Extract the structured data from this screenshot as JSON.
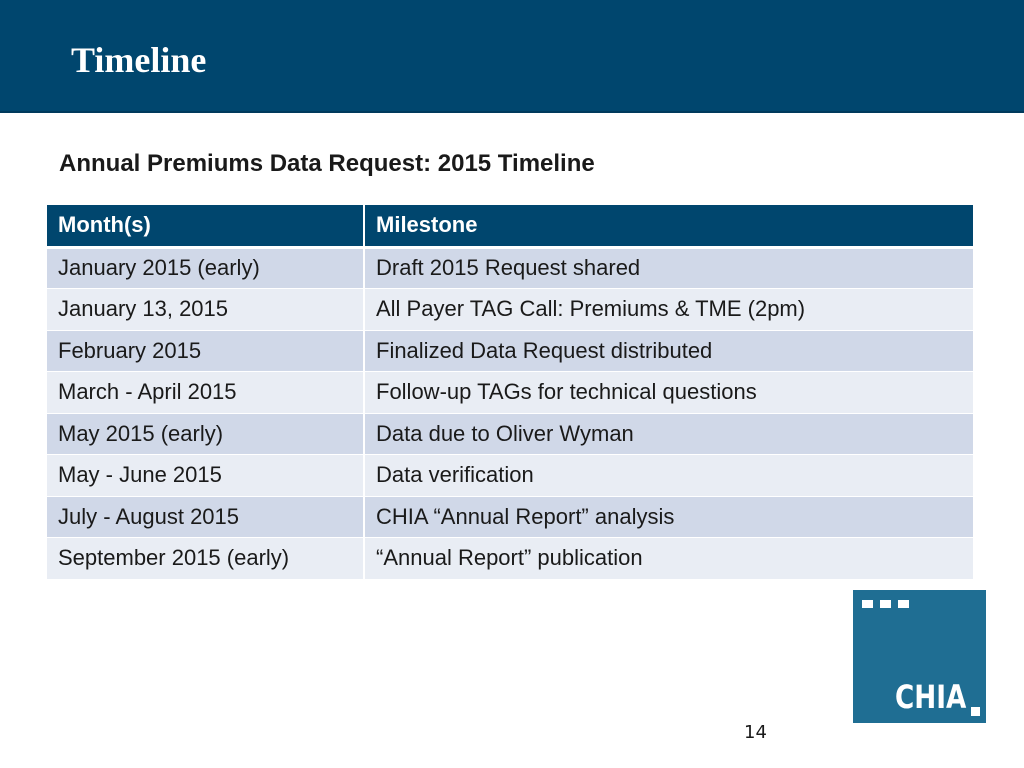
{
  "slide": {
    "title": "Timeline",
    "subtitle": "Annual Premiums Data Request:  2015 Timeline",
    "page_number": "14"
  },
  "table": {
    "headers": [
      "Month(s)",
      "Milestone"
    ],
    "rows": [
      {
        "month": "January 2015 (early)",
        "milestone": "Draft 2015 Request shared"
      },
      {
        "month": "January 13, 2015",
        "milestone": "All Payer TAG Call:  Premiums & TME (2pm)"
      },
      {
        "month": "February 2015",
        "milestone": "Finalized Data Request distributed"
      },
      {
        "month": "March - April 2015",
        "milestone": "Follow-up TAGs for technical questions"
      },
      {
        "month": "May 2015 (early)",
        "milestone": "Data due to Oliver Wyman"
      },
      {
        "month": "May - June 2015",
        "milestone": "Data verification"
      },
      {
        "month": "July - August 2015",
        "milestone": "CHIA “Annual Report” analysis"
      },
      {
        "month": "September 2015 (early)",
        "milestone": "“Annual Report” publication"
      }
    ]
  },
  "logo": {
    "text": "CHIA",
    "icon": "chia-logo-icon"
  },
  "colors": {
    "header": "#00466e",
    "row_dark": "#d0d8e8",
    "row_light": "#e9edf4",
    "logo": "#1f6e93"
  }
}
